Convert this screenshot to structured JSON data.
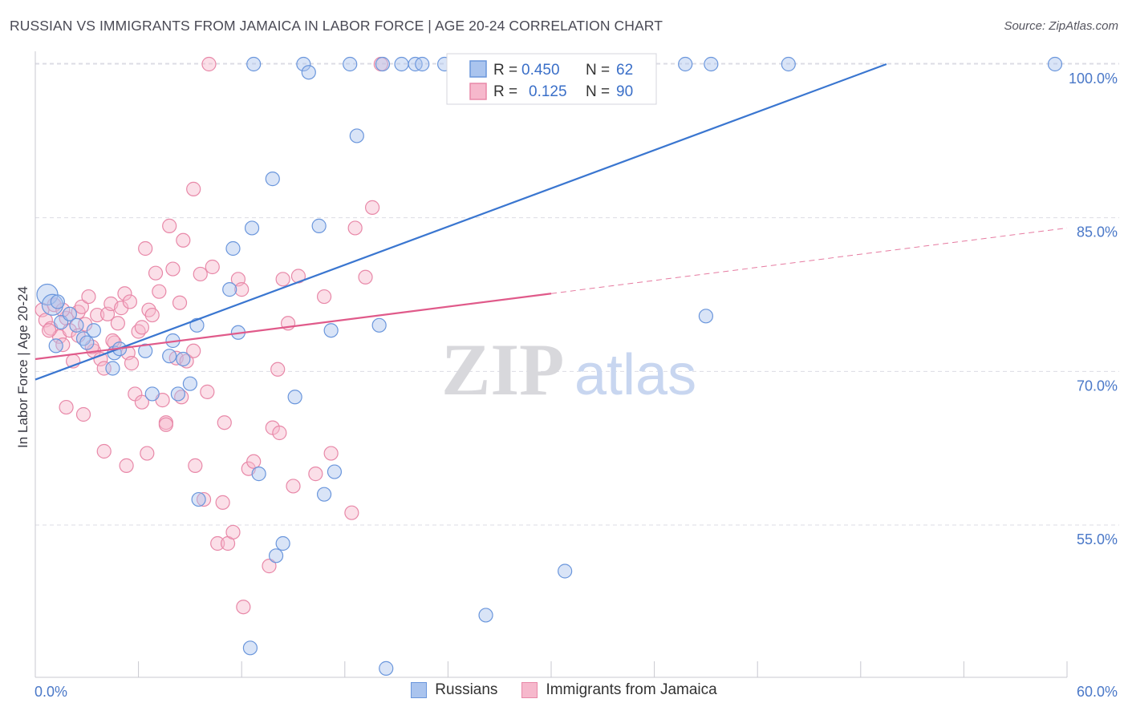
{
  "header": {
    "title": "RUSSIAN VS IMMIGRANTS FROM JAMAICA IN LABOR FORCE | AGE 20-24 CORRELATION CHART",
    "source": "Source: ZipAtlas.com"
  },
  "watermark": {
    "zip": "ZIP",
    "atlas": "atlas"
  },
  "colors": {
    "blue_fill": "#aac4ee",
    "blue_stroke": "#6a96dc",
    "blue_line": "#3a76d0",
    "pink_fill": "#f6b8cc",
    "pink_stroke": "#e888a8",
    "pink_line": "#e05a8a",
    "grid": "#dcdce4",
    "tick_label": "#4a78c8"
  },
  "legend": {
    "items": [
      {
        "r_label": "R =",
        "r_value": "0.450",
        "n_label": "N =",
        "n_value": "62"
      },
      {
        "r_label": "R =",
        "r_value": "0.125",
        "n_label": "N =",
        "n_value": "90"
      }
    ]
  },
  "bottom_legend": {
    "russians": "Russians",
    "jamaica": "Immigrants from Jamaica"
  },
  "chart_data": {
    "type": "scatter",
    "xlabel": "",
    "ylabel": "In Labor Force | Age 20-24",
    "xlim": [
      0,
      60
    ],
    "ylim": [
      40,
      102
    ],
    "x_tick_labels": [
      "0.0%",
      "60.0%"
    ],
    "y_ticks": [
      55,
      70,
      85,
      100
    ],
    "y_tick_labels": [
      "55.0%",
      "70.0%",
      "85.0%",
      "100.0%"
    ],
    "grid": true,
    "legend_position": "top-center",
    "series": [
      {
        "name": "Russians",
        "r": 0.45,
        "n": 62,
        "trend": {
          "x": [
            0,
            49.5
          ],
          "y": [
            69.2,
            100.0
          ]
        },
        "points": [
          [
            0.7,
            77.5
          ],
          [
            1.0,
            76.5
          ],
          [
            1.5,
            74.8
          ],
          [
            1.2,
            72.5
          ],
          [
            2.0,
            75.6
          ],
          [
            2.8,
            73.2
          ],
          [
            2.4,
            74.5
          ],
          [
            3.0,
            72.8
          ],
          [
            4.6,
            71.8
          ],
          [
            4.9,
            72.2
          ],
          [
            4.5,
            70.3
          ],
          [
            6.4,
            72.0
          ],
          [
            6.8,
            67.8
          ],
          [
            7.8,
            71.5
          ],
          [
            8.6,
            71.2
          ],
          [
            8.0,
            73.0
          ],
          [
            8.3,
            67.8
          ],
          [
            9.0,
            68.8
          ],
          [
            9.4,
            74.5
          ],
          [
            9.5,
            57.5
          ],
          [
            11.5,
            82.0
          ],
          [
            11.3,
            78.0
          ],
          [
            11.8,
            73.8
          ],
          [
            12.5,
            43.0
          ],
          [
            12.6,
            84.0
          ],
          [
            13.0,
            60.0
          ],
          [
            13.8,
            88.8
          ],
          [
            14.0,
            52.0
          ],
          [
            14.4,
            53.2
          ],
          [
            15.1,
            67.5
          ],
          [
            16.5,
            84.2
          ],
          [
            16.8,
            58.0
          ],
          [
            17.4,
            60.2
          ],
          [
            17.2,
            74.0
          ],
          [
            18.7,
            93.0
          ],
          [
            20.0,
            74.5
          ],
          [
            20.4,
            41.0
          ],
          [
            26.2,
            46.2
          ],
          [
            30.8,
            50.5
          ],
          [
            39.0,
            75.4
          ],
          [
            12.7,
            100.0
          ],
          [
            15.6,
            100.0
          ],
          [
            15.9,
            99.2
          ],
          [
            18.3,
            100.0
          ],
          [
            21.3,
            100.0
          ],
          [
            22.1,
            100.0
          ],
          [
            22.5,
            100.0
          ],
          [
            23.8,
            100.0
          ],
          [
            25.2,
            100.0
          ],
          [
            26.6,
            100.0
          ],
          [
            28.0,
            100.0
          ],
          [
            30.3,
            100.0
          ],
          [
            31.8,
            100.0
          ],
          [
            33.0,
            100.0
          ],
          [
            35.7,
            100.0
          ],
          [
            37.8,
            100.0
          ],
          [
            39.3,
            100.0
          ],
          [
            43.8,
            100.0
          ],
          [
            59.3,
            100.0
          ],
          [
            20.2,
            100.0
          ],
          [
            1.3,
            76.8
          ],
          [
            3.4,
            74.0
          ]
        ]
      },
      {
        "name": "Immigrants from Jamaica",
        "r": 0.125,
        "n": 90,
        "trend_solid": {
          "x": [
            0,
            30.0
          ],
          "y": [
            71.2,
            77.6
          ]
        },
        "trend_dashed": {
          "x": [
            30.0,
            60.0
          ],
          "y": [
            77.6,
            84.0
          ]
        },
        "points": [
          [
            0.4,
            76.0
          ],
          [
            0.6,
            75.0
          ],
          [
            0.9,
            74.2
          ],
          [
            1.1,
            76.5
          ],
          [
            1.4,
            73.4
          ],
          [
            1.6,
            72.6
          ],
          [
            1.8,
            75.2
          ],
          [
            2.0,
            74.0
          ],
          [
            2.2,
            71.0
          ],
          [
            2.5,
            75.8
          ],
          [
            2.7,
            76.3
          ],
          [
            2.9,
            74.6
          ],
          [
            3.1,
            77.3
          ],
          [
            3.4,
            72.0
          ],
          [
            3.6,
            75.5
          ],
          [
            3.8,
            71.2
          ],
          [
            4.0,
            70.3
          ],
          [
            4.2,
            75.6
          ],
          [
            4.4,
            76.6
          ],
          [
            4.6,
            72.8
          ],
          [
            4.8,
            74.7
          ],
          [
            5.0,
            76.2
          ],
          [
            5.2,
            77.6
          ],
          [
            5.4,
            71.8
          ],
          [
            5.6,
            70.8
          ],
          [
            5.8,
            67.8
          ],
          [
            6.0,
            73.9
          ],
          [
            6.2,
            67.0
          ],
          [
            6.4,
            82.0
          ],
          [
            6.6,
            76.0
          ],
          [
            6.8,
            75.5
          ],
          [
            7.0,
            79.6
          ],
          [
            7.2,
            77.8
          ],
          [
            7.4,
            67.2
          ],
          [
            7.6,
            65.0
          ],
          [
            7.8,
            84.2
          ],
          [
            8.0,
            80.0
          ],
          [
            8.2,
            71.3
          ],
          [
            8.4,
            76.7
          ],
          [
            8.6,
            82.8
          ],
          [
            8.8,
            71.0
          ],
          [
            9.2,
            87.8
          ],
          [
            9.6,
            79.5
          ],
          [
            9.8,
            57.5
          ],
          [
            10.0,
            68.0
          ],
          [
            10.3,
            80.2
          ],
          [
            10.6,
            53.2
          ],
          [
            10.9,
            57.2
          ],
          [
            11.2,
            53.2
          ],
          [
            11.5,
            54.3
          ],
          [
            11.8,
            79.0
          ],
          [
            12.1,
            47.0
          ],
          [
            12.4,
            60.5
          ],
          [
            12.7,
            61.2
          ],
          [
            13.8,
            64.5
          ],
          [
            14.1,
            70.2
          ],
          [
            14.4,
            79.0
          ],
          [
            14.7,
            74.7
          ],
          [
            15.0,
            58.8
          ],
          [
            15.3,
            79.3
          ],
          [
            16.3,
            60.0
          ],
          [
            16.8,
            77.3
          ],
          [
            17.2,
            62.0
          ],
          [
            18.4,
            56.2
          ],
          [
            18.6,
            84.0
          ],
          [
            19.2,
            79.2
          ],
          [
            19.6,
            86.0
          ],
          [
            1.8,
            66.5
          ],
          [
            2.8,
            65.8
          ],
          [
            4.0,
            62.2
          ],
          [
            5.3,
            60.8
          ],
          [
            6.5,
            62.0
          ],
          [
            7.6,
            64.8
          ],
          [
            9.3,
            60.8
          ],
          [
            11.0,
            65.0
          ],
          [
            13.6,
            51.0
          ],
          [
            14.2,
            64.0
          ],
          [
            10.1,
            100.0
          ],
          [
            20.1,
            100.0
          ],
          [
            27.2,
            100.0
          ],
          [
            0.8,
            74.0
          ],
          [
            1.6,
            76.0
          ],
          [
            2.5,
            73.5
          ],
          [
            3.3,
            72.4
          ],
          [
            4.5,
            73.0
          ],
          [
            5.5,
            76.8
          ],
          [
            6.2,
            74.3
          ],
          [
            8.5,
            67.5
          ],
          [
            9.2,
            72.0
          ],
          [
            12.0,
            78.0
          ]
        ]
      }
    ]
  }
}
